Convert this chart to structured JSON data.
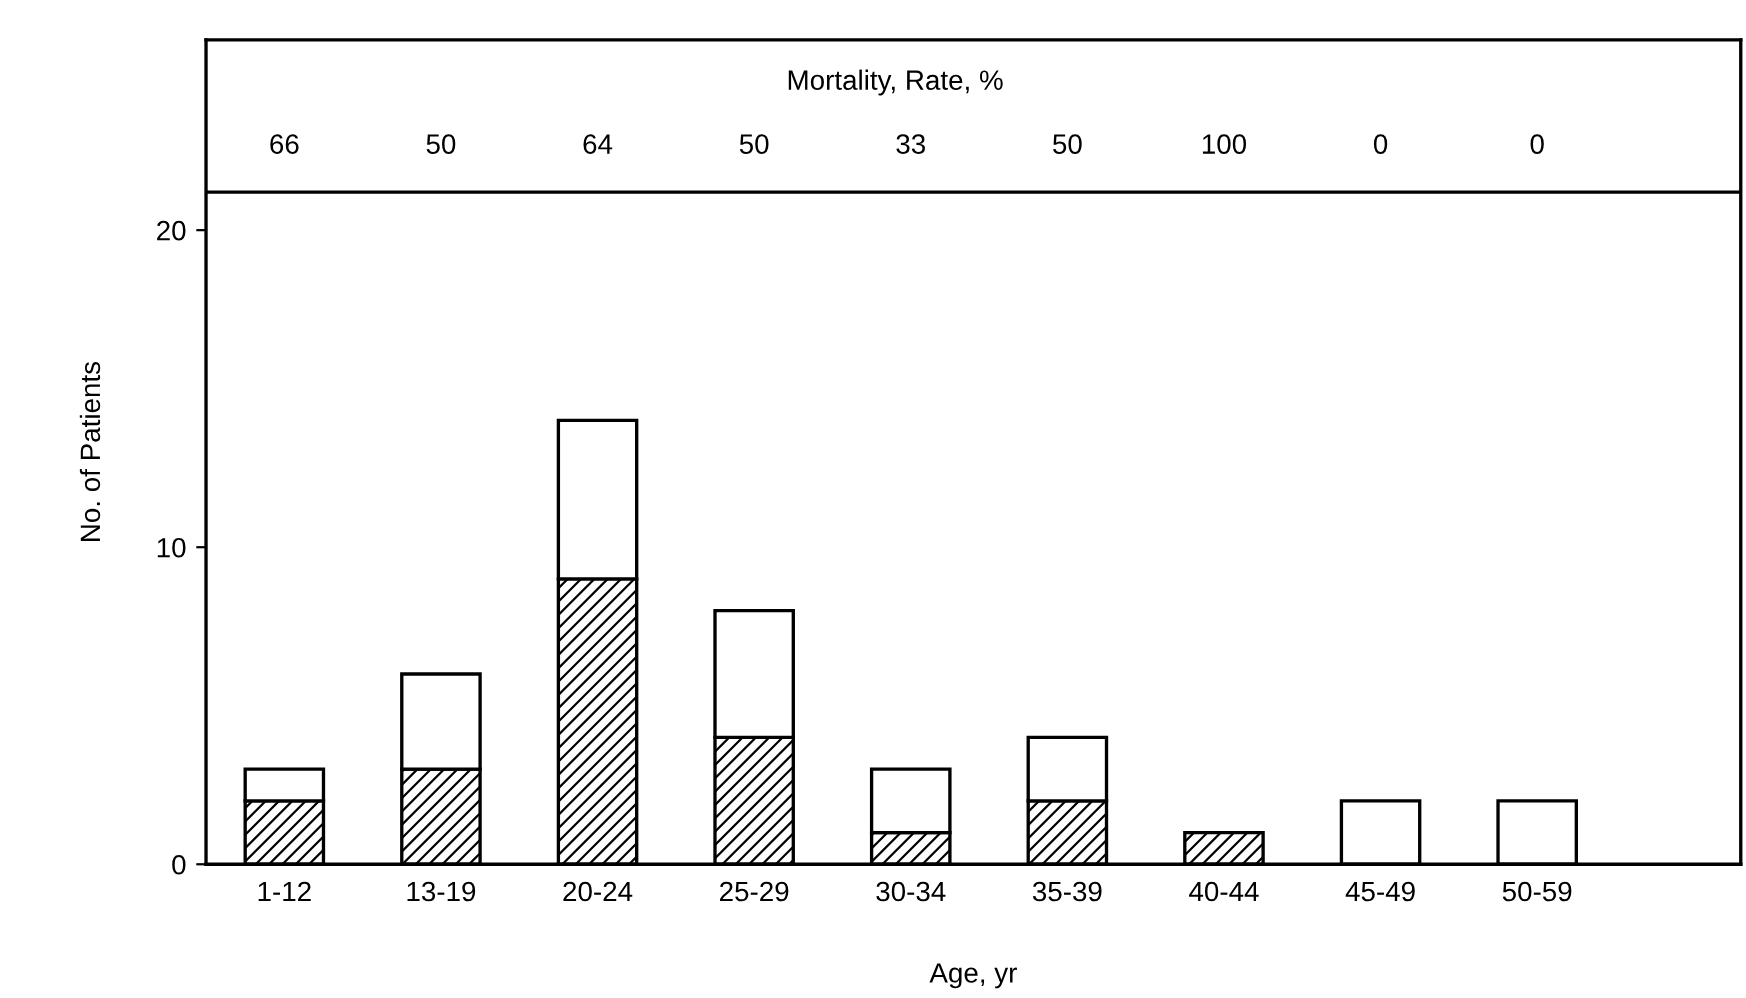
{
  "chart_data": {
    "type": "bar",
    "stacked": true,
    "xlabel": "Age, yr",
    "ylabel": "No. of Patients",
    "categories": [
      "1-12",
      "13-19",
      "20-24",
      "25-29",
      "30-34",
      "35-39",
      "40-44",
      "45-49",
      "50-59"
    ],
    "series": [
      {
        "color": "#000000",
        "values": [
          2,
          3,
          9,
          4,
          1,
          2,
          1,
          0,
          0
        ]
      },
      {
        "color": "#ffffff",
        "values": [
          1,
          3,
          5,
          4,
          2,
          2,
          0,
          2,
          2
        ]
      }
    ],
    "ylim": [
      0,
      26
    ],
    "ref_lines": [
      {
        "axis": "y",
        "value": 21.2,
        "color": "#000000"
      }
    ],
    "yticks": [
      0,
      10,
      20
    ],
    "grid": false,
    "legend": false,
    "annotations": [
      "Mortality, Rate, %",
      "66",
      "50",
      "64",
      "50",
      "33",
      "50",
      "100",
      "0",
      "0"
    ]
  }
}
